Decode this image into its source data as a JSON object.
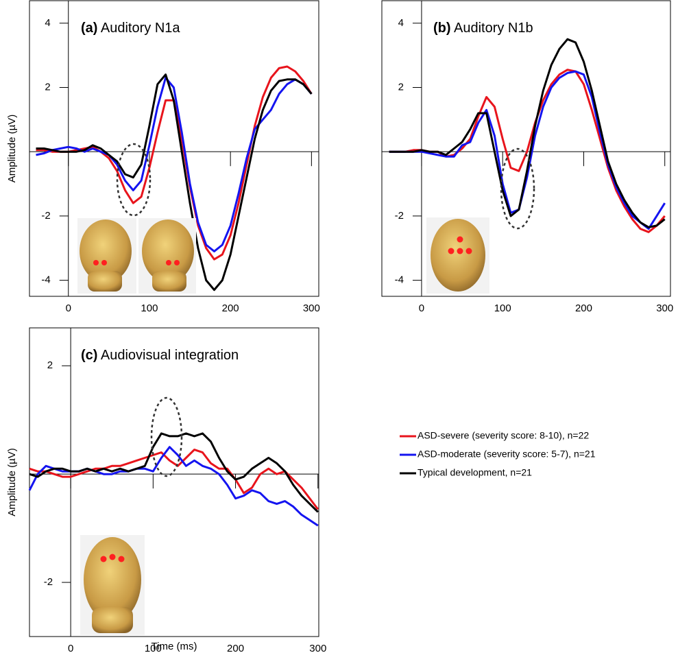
{
  "chart_data": [
    {
      "type": "line",
      "panel": "(a)",
      "title": "Auditory N1a",
      "ylabel": "Amplitude (µV)",
      "x": [
        -40,
        -30,
        -20,
        -10,
        0,
        10,
        20,
        30,
        40,
        50,
        60,
        70,
        80,
        90,
        100,
        110,
        120,
        130,
        140,
        150,
        160,
        170,
        180,
        190,
        200,
        210,
        220,
        230,
        240,
        250,
        260,
        270,
        280,
        290,
        300
      ],
      "series": [
        {
          "color": "#e8141c",
          "values": [
            0.05,
            0.05,
            0.0,
            0.0,
            0.0,
            0.05,
            0.1,
            0.15,
            0.0,
            -0.2,
            -0.6,
            -1.2,
            -1.6,
            -1.4,
            -0.5,
            0.6,
            1.6,
            1.6,
            0.4,
            -1.1,
            -2.3,
            -3.0,
            -3.35,
            -3.2,
            -2.6,
            -1.6,
            -0.4,
            0.8,
            1.7,
            2.3,
            2.6,
            2.65,
            2.5,
            2.2,
            1.8
          ]
        },
        {
          "color": "#1414f0",
          "values": [
            -0.1,
            -0.05,
            0.05,
            0.1,
            0.15,
            0.1,
            0.0,
            0.1,
            0.0,
            -0.1,
            -0.4,
            -0.9,
            -1.2,
            -0.9,
            0.2,
            1.4,
            2.3,
            2.0,
            0.6,
            -1.0,
            -2.2,
            -2.9,
            -3.1,
            -2.9,
            -2.3,
            -1.3,
            -0.2,
            0.7,
            1.0,
            1.3,
            1.8,
            2.1,
            2.25,
            2.1,
            1.8
          ]
        },
        {
          "color": "#000000",
          "values": [
            0.1,
            0.1,
            0.05,
            0.0,
            0.0,
            0.0,
            0.05,
            0.2,
            0.1,
            -0.1,
            -0.3,
            -0.7,
            -0.8,
            -0.4,
            0.8,
            2.1,
            2.4,
            1.6,
            0.0,
            -1.6,
            -3.0,
            -4.0,
            -4.3,
            -4.0,
            -3.2,
            -2.0,
            -0.8,
            0.4,
            1.3,
            1.9,
            2.2,
            2.25,
            2.25,
            2.1,
            1.8
          ]
        }
      ],
      "xlim": [
        -48,
        309
      ],
      "ylim": [
        -4.5,
        4.7
      ],
      "xticks": [
        0,
        100,
        200,
        300
      ],
      "yticks": [
        -4,
        -2,
        2,
        4
      ]
    },
    {
      "type": "line",
      "panel": "(b)",
      "title": "Auditory N1b",
      "x": [
        -40,
        -30,
        -20,
        -10,
        0,
        10,
        20,
        30,
        40,
        50,
        60,
        70,
        80,
        90,
        100,
        110,
        120,
        130,
        140,
        150,
        160,
        170,
        180,
        190,
        200,
        210,
        220,
        230,
        240,
        250,
        260,
        270,
        280,
        290,
        300
      ],
      "series": [
        {
          "color": "#e8141c",
          "values": [
            0,
            0,
            0,
            0.05,
            0.05,
            0.0,
            0.0,
            -0.15,
            -0.1,
            0.1,
            0.4,
            1.1,
            1.7,
            1.4,
            0.4,
            -0.5,
            -0.6,
            0.0,
            0.9,
            1.6,
            2.1,
            2.4,
            2.55,
            2.5,
            2.1,
            1.3,
            0.4,
            -0.5,
            -1.2,
            -1.7,
            -2.1,
            -2.4,
            -2.5,
            -2.3,
            -2.0
          ]
        },
        {
          "color": "#1414f0",
          "values": [
            0,
            0,
            0,
            0,
            0,
            -0.05,
            -0.1,
            -0.15,
            -0.15,
            0.2,
            0.3,
            0.9,
            1.3,
            0.5,
            -1.0,
            -1.9,
            -1.8,
            -0.8,
            0.5,
            1.4,
            2.0,
            2.3,
            2.45,
            2.5,
            2.4,
            1.7,
            0.6,
            -0.4,
            -1.1,
            -1.6,
            -2.0,
            -2.2,
            -2.4,
            -2.0,
            -1.6
          ]
        },
        {
          "color": "#000000",
          "values": [
            0,
            0,
            0,
            0,
            0.05,
            0.0,
            0,
            -0.1,
            0.1,
            0.3,
            0.7,
            1.2,
            1.2,
            0.0,
            -1.2,
            -2.0,
            -1.8,
            -0.6,
            0.8,
            1.9,
            2.7,
            3.2,
            3.5,
            3.4,
            2.8,
            1.9,
            0.8,
            -0.3,
            -1.0,
            -1.5,
            -1.9,
            -2.2,
            -2.35,
            -2.3,
            -2.1
          ]
        }
      ],
      "xlim": [
        -49,
        307
      ],
      "ylim": [
        -4.5,
        4.7
      ],
      "xticks": [
        0,
        100,
        200,
        300
      ],
      "yticks": [
        -4,
        -2,
        2,
        4
      ]
    },
    {
      "type": "line",
      "panel": "(c)",
      "title": "Audiovisual integration",
      "ylabel": "Amplitude (µV)",
      "xlabel": "Time (ms)",
      "x": [
        -50,
        -40,
        -30,
        -20,
        -10,
        0,
        10,
        20,
        30,
        40,
        50,
        60,
        70,
        80,
        90,
        100,
        110,
        120,
        130,
        140,
        150,
        160,
        170,
        180,
        190,
        200,
        210,
        220,
        230,
        240,
        250,
        260,
        270,
        280,
        290,
        300
      ],
      "series": [
        {
          "name": "ASD-severe (severity score: 8-10), n=22",
          "color": "#e8141c",
          "values": [
            0.1,
            0.05,
            0.05,
            0.0,
            -0.05,
            -0.05,
            0.0,
            0.05,
            0.1,
            0.1,
            0.15,
            0.15,
            0.2,
            0.25,
            0.3,
            0.35,
            0.4,
            0.25,
            0.15,
            0.3,
            0.45,
            0.4,
            0.2,
            0.1,
            0.1,
            -0.1,
            -0.35,
            -0.25,
            0.0,
            0.1,
            0.0,
            0.05,
            -0.1,
            -0.25,
            -0.45,
            -0.65
          ]
        },
        {
          "name": "ASD-moderate (severity score: 5-7), n=21",
          "color": "#1414f0",
          "values": [
            -0.3,
            0.0,
            0.15,
            0.1,
            0.05,
            0.05,
            0.05,
            0.1,
            0.05,
            0.0,
            0.0,
            0.05,
            0.05,
            0.1,
            0.1,
            0.05,
            0.3,
            0.5,
            0.35,
            0.15,
            0.25,
            0.15,
            0.1,
            0.0,
            -0.2,
            -0.45,
            -0.4,
            -0.3,
            -0.35,
            -0.5,
            -0.55,
            -0.5,
            -0.6,
            -0.75,
            -0.85,
            -0.95
          ]
        },
        {
          "name": "Typical development, n=21",
          "color": "#000000",
          "values": [
            0.0,
            -0.05,
            0.05,
            0.1,
            0.1,
            0.05,
            0.05,
            0.1,
            0.05,
            0.1,
            0.05,
            0.1,
            0.05,
            0.1,
            0.15,
            0.5,
            0.75,
            0.7,
            0.7,
            0.75,
            0.7,
            0.75,
            0.6,
            0.3,
            0.05,
            -0.1,
            -0.05,
            0.1,
            0.2,
            0.3,
            0.2,
            0.05,
            -0.2,
            -0.4,
            -0.55,
            -0.7
          ]
        }
      ],
      "xlim": [
        -50,
        301
      ],
      "ylim": [
        -3.0,
        2.7
      ],
      "xticks": [
        0,
        100,
        200,
        300
      ],
      "yticks": [
        -2,
        2
      ],
      "legend": "right"
    }
  ]
}
